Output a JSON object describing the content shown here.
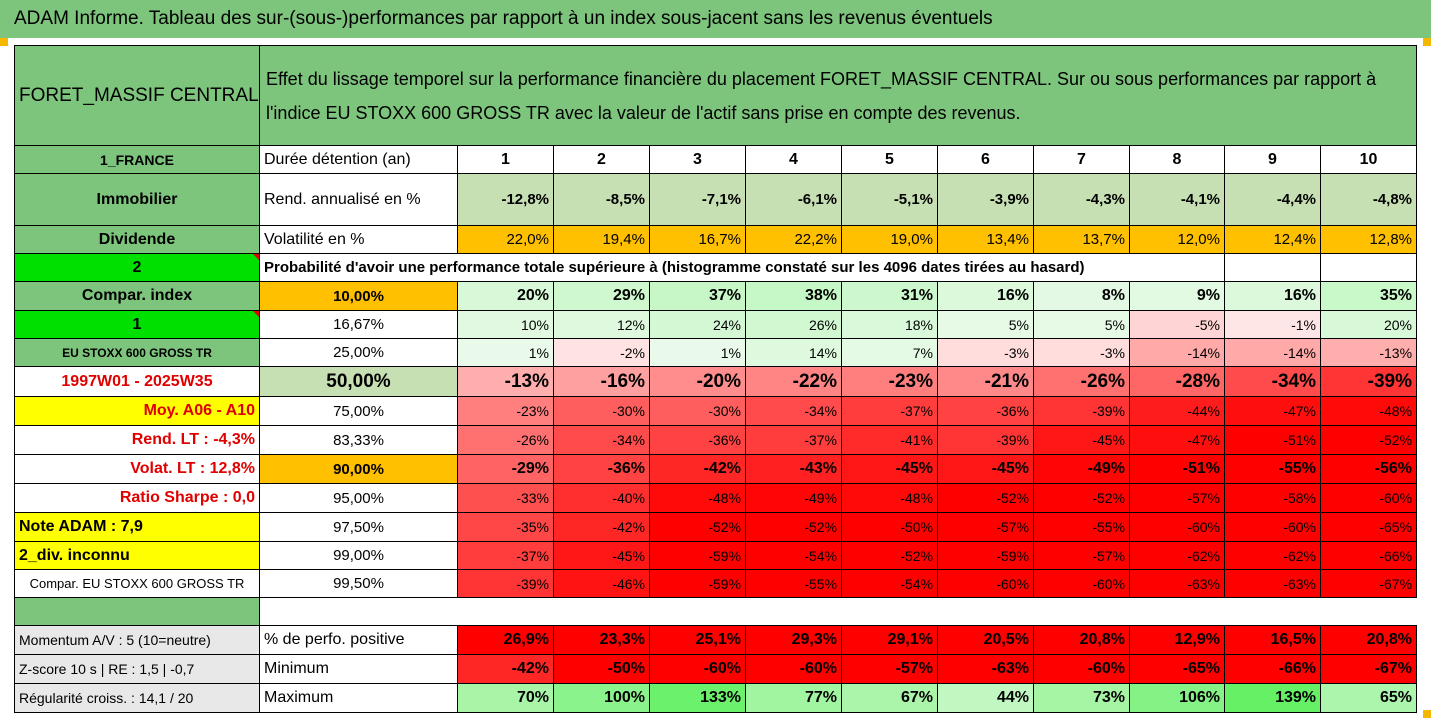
{
  "title": "ADAM Informe. Tableau des sur-(sous-)performances par rapport à un index sous-jacent sans les revenus éventuels",
  "fund_name": "FORET_MASSIF CENTRAL",
  "description": "Effet du lissage temporel sur la performance financière du placement FORET_MASSIF CENTRAL. Sur ou sous performances par rapport à l'indice EU STOXX 600 GROSS TR avec la valeur de l'actif sans prise en compte des revenus.",
  "sidebar": {
    "country": "1_FRANCE",
    "category": "Immobilier",
    "subcategory": "Dividende",
    "flag2": "2",
    "compar_index": "Compar. index",
    "flag1": "1",
    "index_name": "EU STOXX 600 GROSS TR",
    "period": "1997W01 - 2025W35",
    "moy": "Moy. A06 - A10",
    "rend_lt": "Rend. LT :   -4,3%",
    "volat_lt": "Volat. LT :   12,8%",
    "sharpe": "Ratio Sharpe :   0,0",
    "note": "Note ADAM : 7,9",
    "div": "2_div. inconnu",
    "compar_full": "Compar. EU STOXX 600 GROSS TR",
    "momentum": "Momentum A/V : 5 (10=neutre)",
    "zscore": "Z-score 10 s  | RE : 1,5  | -0,7",
    "regularite": "Régularité croiss. : 14,1 / 20"
  },
  "header": {
    "duration_label": "Durée détention (an)",
    "years": [
      "1",
      "2",
      "3",
      "4",
      "5",
      "6",
      "7",
      "8",
      "9",
      "10"
    ]
  },
  "rend": {
    "label": "Rend. annualisé en %",
    "values": [
      "-12,8%",
      "-8,5%",
      "-7,1%",
      "-6,1%",
      "-5,1%",
      "-3,9%",
      "-4,3%",
      "-4,1%",
      "-4,4%",
      "-4,8%"
    ]
  },
  "vol": {
    "label": "Volatilité en %",
    "values": [
      "22,0%",
      "19,4%",
      "16,7%",
      "22,2%",
      "19,0%",
      "13,4%",
      "13,7%",
      "12,0%",
      "12,4%",
      "12,8%"
    ]
  },
  "prob_caption": "Probabilité d'avoir une performance totale supérieure à (histogramme constaté sur les 4096 dates tirées au hasard)",
  "percentile_rows": [
    {
      "pct": "10,00%",
      "values": [
        "20%",
        "29%",
        "37%",
        "38%",
        "31%",
        "16%",
        "8%",
        "9%",
        "16%",
        "35%"
      ]
    },
    {
      "pct": "16,67%",
      "values": [
        "10%",
        "12%",
        "24%",
        "26%",
        "18%",
        "5%",
        "5%",
        "-5%",
        "-1%",
        "20%"
      ]
    },
    {
      "pct": "25,00%",
      "values": [
        "1%",
        "-2%",
        "1%",
        "14%",
        "7%",
        "-3%",
        "-3%",
        "-14%",
        "-14%",
        "-13%"
      ]
    },
    {
      "pct": "50,00%",
      "values": [
        "-13%",
        "-16%",
        "-20%",
        "-22%",
        "-23%",
        "-21%",
        "-26%",
        "-28%",
        "-34%",
        "-39%"
      ]
    },
    {
      "pct": "75,00%",
      "values": [
        "-23%",
        "-30%",
        "-30%",
        "-34%",
        "-37%",
        "-36%",
        "-39%",
        "-44%",
        "-47%",
        "-48%"
      ]
    },
    {
      "pct": "83,33%",
      "values": [
        "-26%",
        "-34%",
        "-36%",
        "-37%",
        "-41%",
        "-39%",
        "-45%",
        "-47%",
        "-51%",
        "-52%"
      ]
    },
    {
      "pct": "90,00%",
      "values": [
        "-29%",
        "-36%",
        "-42%",
        "-43%",
        "-45%",
        "-45%",
        "-49%",
        "-51%",
        "-55%",
        "-56%"
      ]
    },
    {
      "pct": "95,00%",
      "values": [
        "-33%",
        "-40%",
        "-48%",
        "-49%",
        "-48%",
        "-52%",
        "-52%",
        "-57%",
        "-58%",
        "-60%"
      ]
    },
    {
      "pct": "97,50%",
      "values": [
        "-35%",
        "-42%",
        "-52%",
        "-52%",
        "-50%",
        "-57%",
        "-55%",
        "-60%",
        "-60%",
        "-65%"
      ]
    },
    {
      "pct": "99,00%",
      "values": [
        "-37%",
        "-45%",
        "-59%",
        "-54%",
        "-52%",
        "-59%",
        "-57%",
        "-62%",
        "-62%",
        "-66%"
      ]
    },
    {
      "pct": "99,50%",
      "values": [
        "-39%",
        "-46%",
        "-59%",
        "-55%",
        "-54%",
        "-60%",
        "-60%",
        "-63%",
        "-63%",
        "-67%"
      ]
    }
  ],
  "stats": [
    {
      "label": "% de perfo. positive",
      "values": [
        "26,9%",
        "23,3%",
        "25,1%",
        "29,3%",
        "29,1%",
        "20,5%",
        "20,8%",
        "12,9%",
        "16,5%",
        "20,8%"
      ]
    },
    {
      "label": "Minimum",
      "values": [
        "-42%",
        "-50%",
        "-60%",
        "-60%",
        "-57%",
        "-63%",
        "-60%",
        "-65%",
        "-66%",
        "-67%"
      ]
    },
    {
      "label": "Maximum",
      "values": [
        "70%",
        "100%",
        "133%",
        "77%",
        "67%",
        "44%",
        "73%",
        "106%",
        "139%",
        "65%"
      ]
    }
  ]
}
